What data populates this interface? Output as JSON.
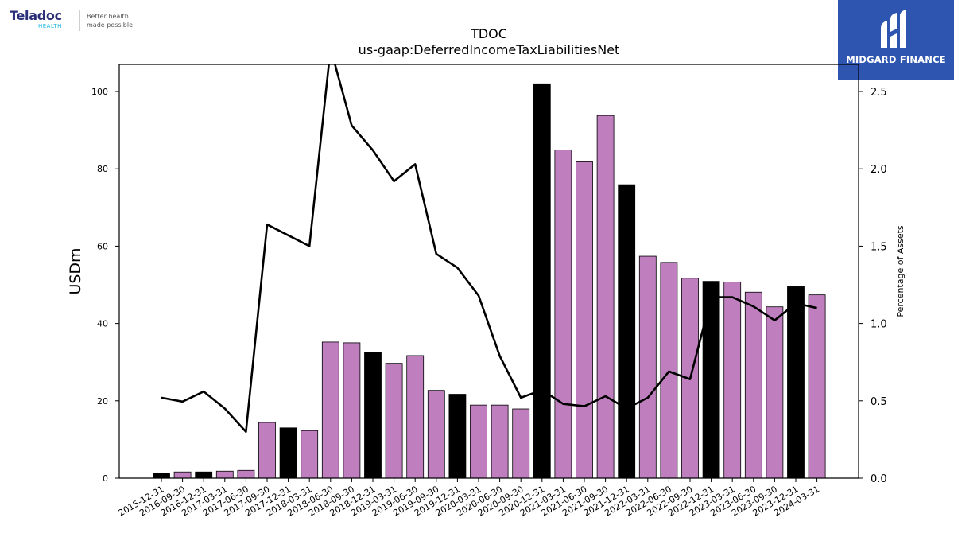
{
  "brand_left": {
    "name": "Teladoc",
    "sub": "HEALTH",
    "tagline_1": "Better health",
    "tagline_2": "made possible"
  },
  "brand_right": {
    "name": "MIDGARD FINANCE"
  },
  "colors": {
    "bar_default": "#bf7fbf",
    "bar_highlight": "#000000",
    "line": "#000000",
    "badge": "#2e55b0"
  },
  "chart_data": {
    "type": "bar",
    "title": "TDOC",
    "subtitle": "us-gaap:DeferredIncomeTaxLiabilitiesNet",
    "ylabel": "USDm",
    "y2label": "Percentage of Assets",
    "ylim": [
      0,
      107
    ],
    "y2lim": [
      0,
      2.675
    ],
    "yticks": [
      0,
      20,
      40,
      60,
      80,
      100
    ],
    "y2ticks": [
      "0.0",
      "0.5",
      "1.0",
      "1.5",
      "2.0",
      "2.5"
    ],
    "categories": [
      "2015-12-31",
      "2016-09-30",
      "2016-12-31",
      "2017-03-31",
      "2017-06-30",
      "2017-09-30",
      "2017-12-31",
      "2018-03-31",
      "2018-06-30",
      "2018-09-30",
      "2018-12-31",
      "2019-03-31",
      "2019-06-30",
      "2019-09-30",
      "2019-12-31",
      "2020-03-31",
      "2020-06-30",
      "2020-09-30",
      "2020-12-31",
      "2021-03-31",
      "2021-06-30",
      "2021-09-30",
      "2021-12-31",
      "2022-03-31",
      "2022-06-30",
      "2022-09-30",
      "2022-12-31",
      "2023-03-31",
      "2023-06-30",
      "2023-09-30",
      "2023-12-31",
      "2024-03-31"
    ],
    "series": [
      {
        "kind": "bar",
        "values": [
          1.2,
          1.6,
          1.6,
          1.8,
          2.0,
          14.4,
          13.0,
          12.3,
          35.2,
          35.0,
          32.6,
          29.7,
          31.7,
          22.7,
          21.7,
          18.9,
          18.9,
          17.9,
          102.0,
          84.9,
          81.8,
          93.8,
          75.9,
          57.4,
          55.8,
          51.7,
          50.9,
          50.7,
          48.1,
          44.3,
          49.5,
          47.4
        ],
        "highlight": [
          true,
          false,
          true,
          false,
          false,
          false,
          true,
          false,
          false,
          false,
          true,
          false,
          false,
          false,
          true,
          false,
          false,
          false,
          true,
          false,
          false,
          false,
          true,
          false,
          false,
          false,
          true,
          false,
          false,
          false,
          true,
          false
        ]
      },
      {
        "kind": "line",
        "axis": "right",
        "values": [
          0.52,
          0.495,
          0.56,
          0.45,
          0.3,
          1.64,
          1.57,
          1.5,
          2.78,
          2.28,
          2.12,
          1.92,
          2.03,
          1.45,
          1.36,
          1.18,
          0.79,
          0.52,
          0.57,
          0.48,
          0.465,
          0.53,
          0.45,
          0.52,
          0.69,
          0.64,
          1.17,
          1.17,
          1.11,
          1.02,
          1.13,
          1.1
        ]
      }
    ],
    "grid": false
  }
}
